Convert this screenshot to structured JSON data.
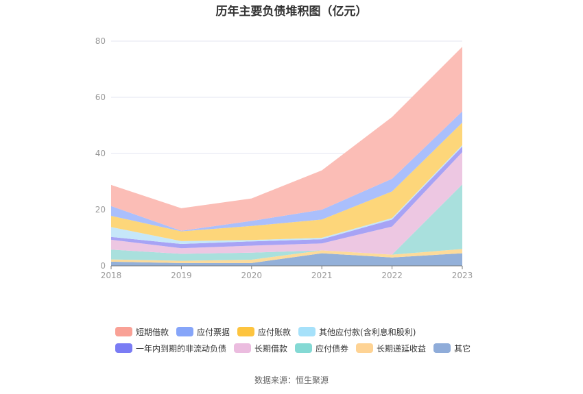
{
  "title": "历年主要负债堆积图（亿元）",
  "source": "数据来源：恒生聚源",
  "chart_data": {
    "type": "area",
    "stacked": true,
    "title": "历年主要负债堆积图（亿元）",
    "xlabel": "",
    "ylabel": "",
    "categories": [
      "2018",
      "2019",
      "2020",
      "2021",
      "2022",
      "2023"
    ],
    "ylim": [
      0,
      80
    ],
    "yticks": [
      0,
      20,
      40,
      60,
      80
    ],
    "grid": true,
    "legend_position": "bottom",
    "series": [
      {
        "name": "其它",
        "color": "#93b0d9",
        "values": [
          1.5,
          1.0,
          1.0,
          4.5,
          3.0,
          4.5
        ]
      },
      {
        "name": "长期递延收益",
        "color": "#fddb9a",
        "values": [
          0.8,
          0.8,
          1.2,
          1.0,
          1.0,
          1.5
        ]
      },
      {
        "name": "应付债券",
        "color": "#a9e0dd",
        "values": [
          3.5,
          2.5,
          2.5,
          0,
          0,
          23.0
        ]
      },
      {
        "name": "长期借款",
        "color": "#edc7e2",
        "values": [
          3.5,
          2.0,
          2.5,
          2.5,
          10.0,
          11.5
        ]
      },
      {
        "name": "一年内到期的非流动负债",
        "color": "#a7a3f5",
        "values": [
          1.0,
          1.5,
          1.5,
          1.5,
          2.5,
          2.0
        ]
      },
      {
        "name": "其他应付款(含利息和股利)",
        "color": "#c6e7f9",
        "values": [
          3.5,
          1.0,
          0.5,
          0.5,
          0.5,
          0.5
        ]
      },
      {
        "name": "应付账款",
        "color": "#fdd67a",
        "values": [
          4.0,
          3.5,
          5.0,
          6.5,
          9.5,
          8.0
        ]
      },
      {
        "name": "应付票据",
        "color": "#aabffc",
        "values": [
          3.5,
          0.2,
          1.8,
          3.5,
          4.5,
          4.0
        ]
      },
      {
        "name": "短期借款",
        "color": "#fbbdb6",
        "values": [
          7.5,
          8.0,
          8.0,
          14.0,
          22.0,
          23.0
        ]
      }
    ],
    "legend_order": [
      "短期借款",
      "应付票据",
      "应付账款",
      "其他应付款(含利息和股利)",
      "一年内到期的非流动负债",
      "长期借款",
      "应付债券",
      "长期递延收益",
      "其它"
    ],
    "legend_swatch_colors": {
      "短期借款": "#f9a196",
      "应付票据": "#86a5f9",
      "应付账款": "#fdc43f",
      "其他应付款(含利息和股利)": "#a6e1fa",
      "一年内到期的非流动负债": "#7a7cf4",
      "长期借款": "#ebbcdf",
      "应付债券": "#84d9d4",
      "长期递延收益": "#fed394",
      "其它": "#8facd9"
    }
  }
}
